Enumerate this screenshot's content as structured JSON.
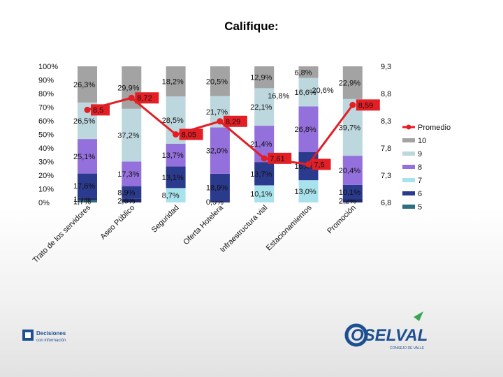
{
  "slide": {
    "title": "Califique:"
  },
  "logos": {
    "left_line1": "Decisiones",
    "left_line2": "con información",
    "right_name": "OSELVAL",
    "right_tag": "CONSEJO DE VALLE"
  },
  "chart_data": {
    "type": "bar",
    "stacked": "percent",
    "title": "Califique:",
    "categories": [
      "Trato de los servidores",
      "Aseo Público",
      "Seguridad",
      "Oferta Hotelera",
      "Infraestructura vial",
      "Estacionamientos",
      "Promoción"
    ],
    "series": [
      {
        "name": "5",
        "color": "#2e6e7e",
        "values": [
          1.7,
          0.0,
          0.0,
          0.0,
          0.0,
          0.0,
          0.0
        ]
      },
      {
        "name": "6",
        "color": "#1f2a6b",
        "values": [
          1.7,
          2.6,
          0.0,
          0.9,
          0.0,
          0.0,
          2.2
        ]
      },
      {
        "name": "7",
        "color": "#a8e2ec",
        "values": [
          0.0,
          0.0,
          8.7,
          0.0,
          10.1,
          13.0,
          0.0
        ]
      },
      {
        "name": "8",
        "color": "#2a3a8c",
        "values": [
          17.6,
          8.9,
          13.1,
          18.9,
          13.7,
          16.4,
          10.1
        ]
      },
      {
        "name": "9",
        "color": "#9370db",
        "values": [
          25.1,
          17.3,
          13.7,
          32.0,
          21.4,
          26.8,
          20.4
        ]
      },
      {
        "name": "10",
        "color": "#bcd7de",
        "values": [
          26.5,
          37.2,
          28.5,
          21.7,
          22.1,
          16.6,
          39.7
        ]
      },
      {
        "name": "",
        "color": "#a3a3a3",
        "values": [
          26.3,
          29.9,
          18.2,
          20.5,
          12.9,
          6.8,
          22.9
        ]
      }
    ],
    "extra_labels": [
      {
        "category": "Infraestructura vial",
        "text": "16,8%"
      },
      {
        "category": "Estacionamientos",
        "text": "20,6%"
      }
    ],
    "line": {
      "name": "Promedio",
      "color": "#e31e24",
      "values": [
        8.5,
        8.72,
        8.05,
        8.29,
        7.61,
        7.5,
        8.59
      ],
      "labels": [
        "8,5",
        "8,72",
        "8,05",
        "8,29",
        "7,61",
        "7,5",
        "8,59"
      ]
    },
    "y_axis_left": {
      "min": 0,
      "max": 100,
      "ticks": [
        "0%",
        "10%",
        "20%",
        "30%",
        "40%",
        "50%",
        "60%",
        "70%",
        "80%",
        "90%",
        "100%"
      ]
    },
    "y_axis_right": {
      "ticks": [
        "6,8",
        "7,3",
        "7,8",
        "8,3",
        "8,8",
        "9,3"
      ],
      "values": [
        6.8,
        7.3,
        7.8,
        8.3,
        8.8,
        9.3
      ]
    },
    "legend": {
      "position": "right",
      "items": [
        {
          "label": "Promedio",
          "kind": "line",
          "color": "#e31e24"
        },
        {
          "label": "10",
          "kind": "box",
          "color": "#a3a3a3"
        },
        {
          "label": "9",
          "kind": "box",
          "color": "#bcd7de"
        },
        {
          "label": "8",
          "kind": "box",
          "color": "#9370db"
        },
        {
          "label": "7",
          "kind": "box",
          "color": "#a8e2ec"
        },
        {
          "label": "6",
          "kind": "box",
          "color": "#2a3a8c"
        },
        {
          "label": "5",
          "kind": "box",
          "color": "#2e6e7e"
        }
      ]
    },
    "grid": false
  }
}
